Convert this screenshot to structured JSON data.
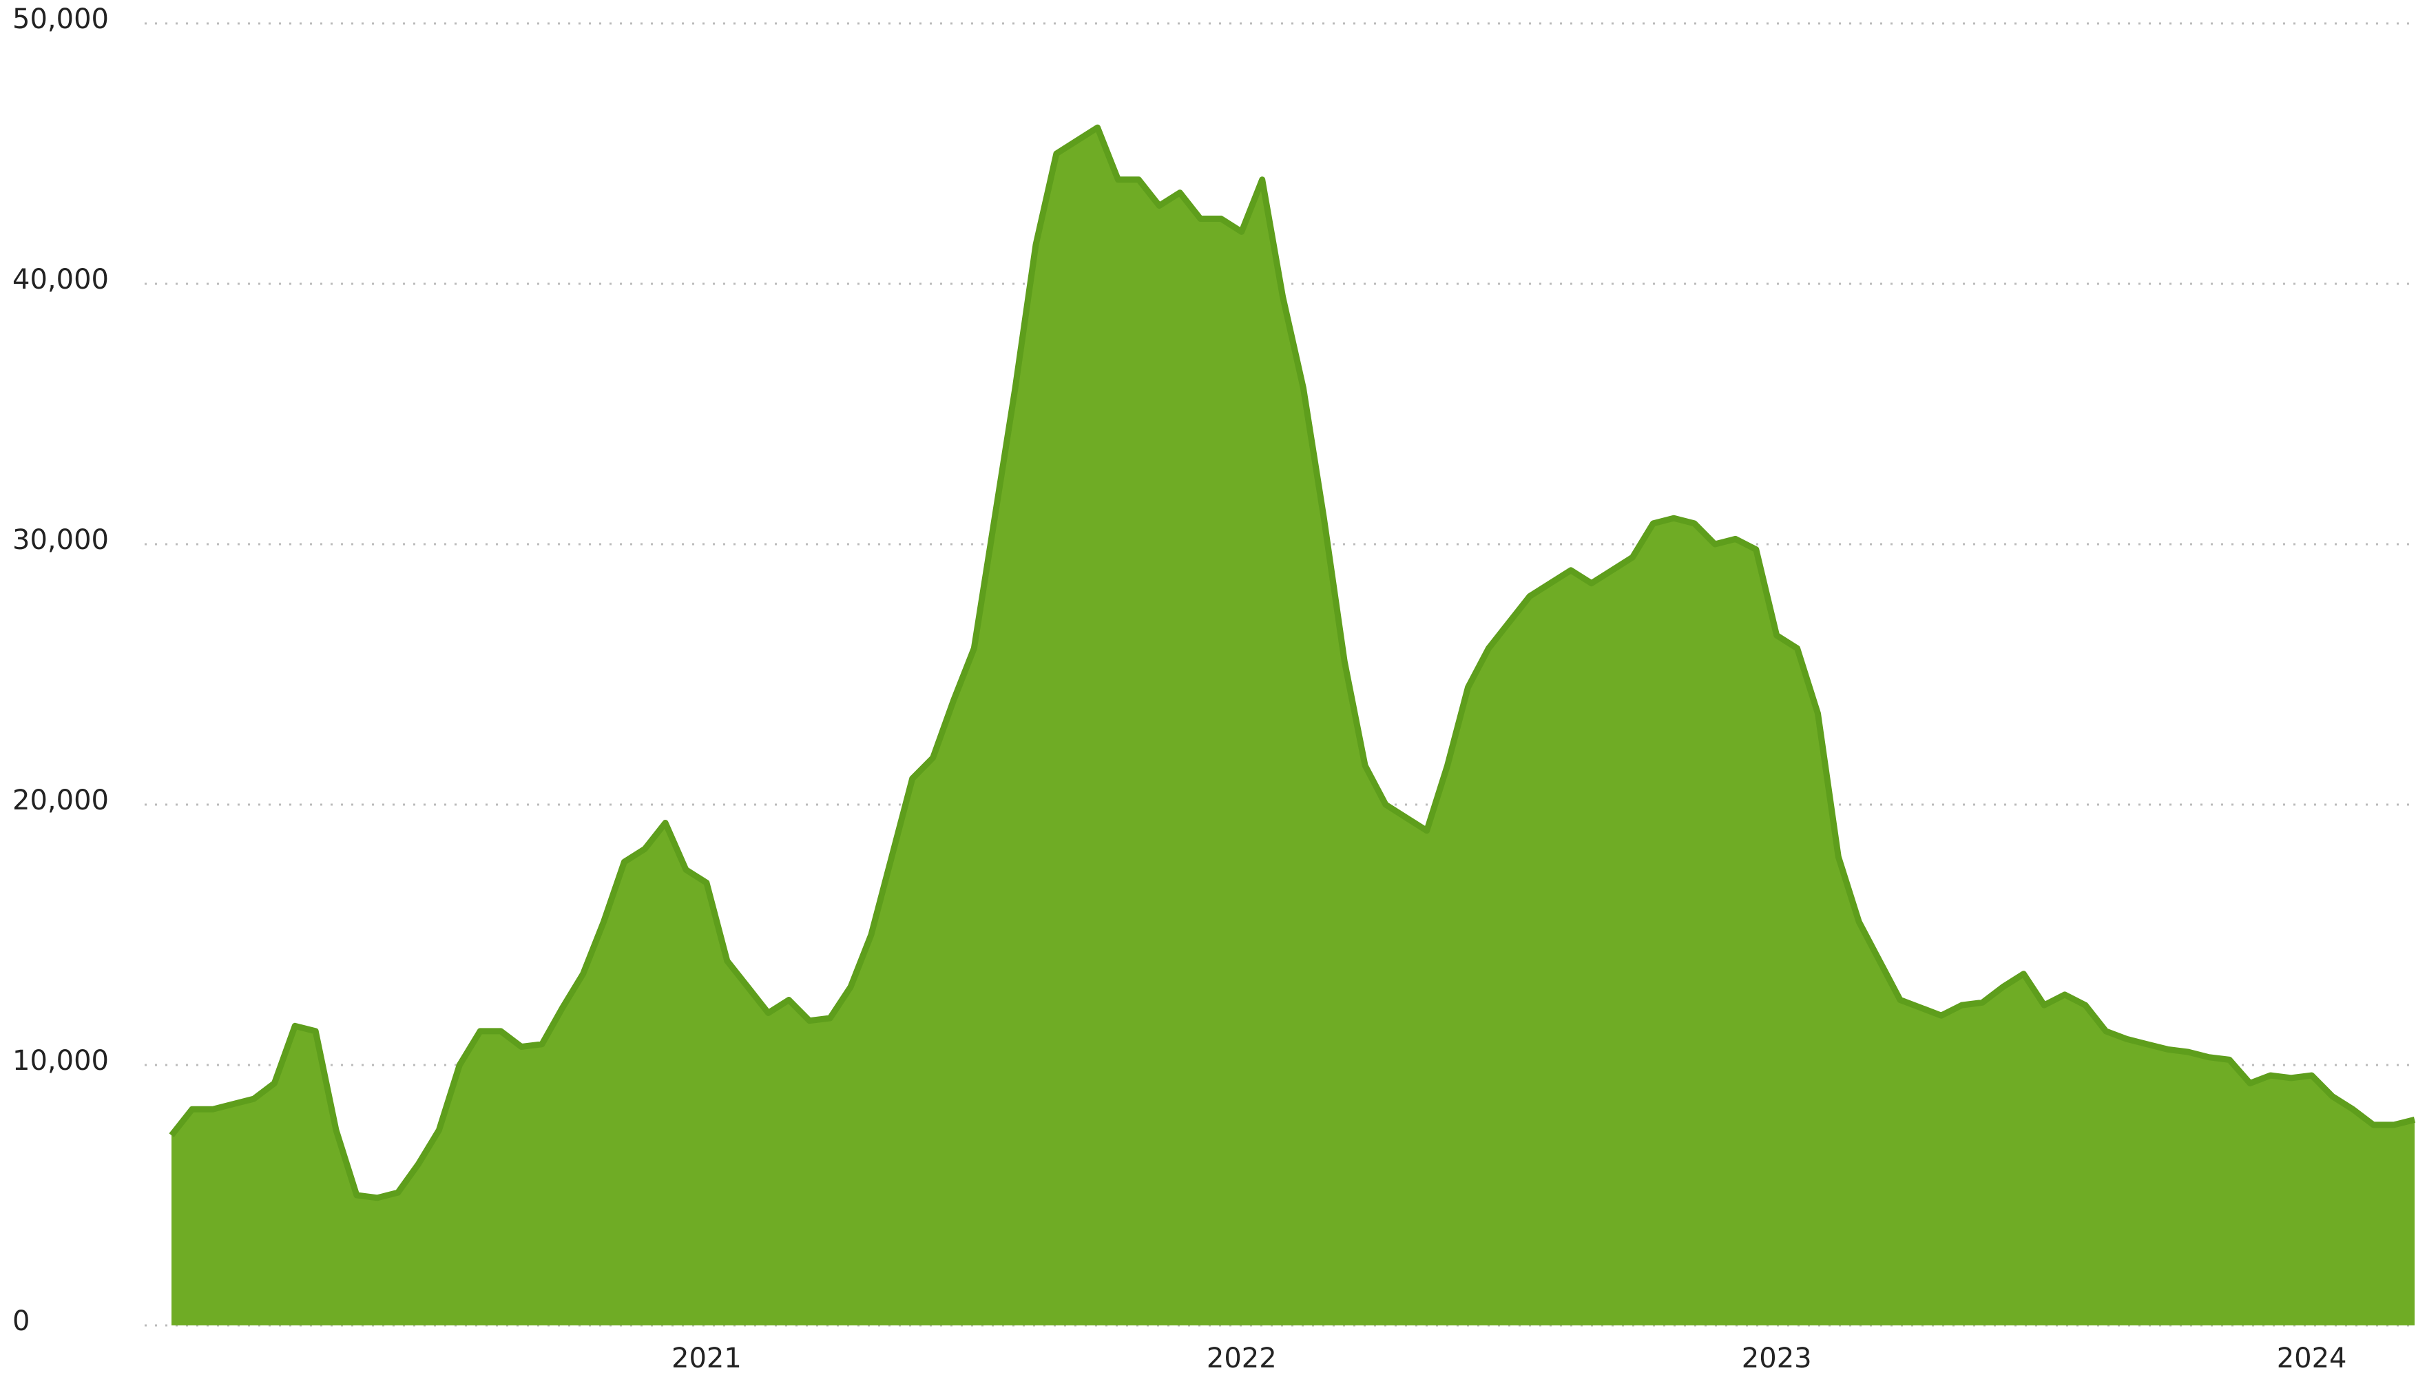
{
  "chart_data": {
    "type": "area",
    "categories": [
      null,
      null,
      null,
      null,
      null,
      null,
      null,
      null,
      null,
      null,
      null,
      null,
      null,
      null,
      null,
      null,
      null,
      null,
      null,
      null,
      null,
      null,
      null,
      null,
      null,
      null,
      "2021",
      null,
      null,
      null,
      null,
      null,
      null,
      null,
      null,
      null,
      null,
      null,
      null,
      null,
      null,
      null,
      null,
      null,
      null,
      null,
      null,
      null,
      null,
      null,
      null,
      null,
      "2022",
      null,
      null,
      null,
      null,
      null,
      null,
      null,
      null,
      null,
      null,
      null,
      null,
      null,
      null,
      null,
      null,
      null,
      null,
      null,
      null,
      null,
      null,
      null,
      null,
      null,
      "2023",
      null,
      null,
      null,
      null,
      null,
      null,
      null,
      null,
      null,
      null,
      null,
      null,
      null,
      null,
      null,
      null,
      null,
      null,
      null,
      null,
      null,
      null,
      null,
      null,
      null,
      "2024",
      null,
      null,
      null,
      null,
      null
    ],
    "series": [
      {
        "color": "#6fac25",
        "values": [
          7300,
          8300,
          8300,
          8500,
          8700,
          9300,
          11500,
          11300,
          7500,
          5000,
          4900,
          5100,
          6200,
          7500,
          10000,
          11300,
          11300,
          10700,
          10800,
          12200,
          13500,
          15500,
          17800,
          18300,
          19300,
          17500,
          17000,
          14000,
          13000,
          12000,
          12500,
          11700,
          11800,
          13000,
          15000,
          18000,
          21000,
          21800,
          24000,
          26000,
          31000,
          36000,
          41500,
          45000,
          45500,
          46000,
          44000,
          44000,
          43000,
          43500,
          42500,
          42500,
          42000,
          44000,
          39500,
          36000,
          31000,
          25500,
          21500,
          20000,
          19500,
          19000,
          21500,
          24500,
          26000,
          27000,
          28000,
          28500,
          29000,
          28500,
          29000,
          29500,
          30800,
          31000,
          30800,
          30000,
          30200,
          29800,
          26500,
          26000,
          23500,
          18000,
          15500,
          14000,
          12500,
          12200,
          11900,
          12300,
          12400,
          13000,
          13500,
          12300,
          12700,
          12300,
          11300,
          11000,
          10800,
          10600,
          10500,
          10300,
          10200,
          9300,
          9600,
          9500,
          9600,
          8800,
          8300,
          7700,
          7700,
          7900
        ]
      }
    ],
    "ylim": [
      0,
      50000
    ],
    "yticks": [
      0,
      {
        "value": 10000,
        "label": "10,000"
      },
      {
        "value": 20000,
        "label": "20,000"
      },
      {
        "value": 30000,
        "label": "30,000"
      },
      {
        "value": 40000,
        "label": "40,000"
      },
      {
        "value": 50000,
        "label": "50,000"
      }
    ],
    "grid": true
  }
}
